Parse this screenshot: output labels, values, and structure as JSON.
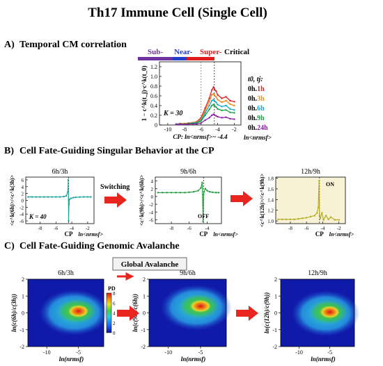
{
  "title": "Th17 Immune Cell (Single Cell)",
  "panels": {
    "A": {
      "label": "A)",
      "title": "Temporal CM correlation"
    },
    "B": {
      "label": "B)",
      "title": "Cell Fate-Guiding Singular Behavior at the CP"
    },
    "C": {
      "label": "C)",
      "title": "Cell Fate-Guiding Genomic Avalanche"
    }
  },
  "criticality": {
    "sub": "Sub-",
    "near": "Near-",
    "super": "Super-",
    "critical": "Critical"
  },
  "colors": {
    "sub": "#7030a0",
    "near": "#1f3fc8",
    "super": "#e01b1b",
    "arrow": "#e8261f",
    "b1": "#1aa39a",
    "b2": "#1f9a3a",
    "b3": "#b6a81a",
    "bg3": "#f7f2d6"
  },
  "arrow_label_switching": "Switching",
  "global_avalanche": "Global Avalanche",
  "chart_data": [
    {
      "type": "line",
      "ylabel": "1 − c^k(t_j)·c^k(t_0)",
      "xlabel": "CP: ln<nrmsf>~ -4.4",
      "xlabel_right": "ln<nrmsf>",
      "annotation": "K = 30",
      "legend_title": "t0, tj:",
      "xlim": [
        -11,
        -1.2
      ],
      "ylim": [
        0,
        1.3
      ],
      "xticks": [
        "-10",
        "-8",
        "-6",
        "-4",
        "-2"
      ],
      "yticks": [
        "0",
        "0.2",
        "0.4",
        "0.6",
        "0.8",
        "1.0",
        "1.2"
      ],
      "vlines": [
        -6,
        -4.4
      ],
      "x": [
        -9,
        -8.5,
        -8,
        -7.5,
        -7,
        -6.5,
        -6,
        -5.5,
        -5,
        -4.7,
        -4.5,
        -4.4,
        -4.2,
        -4,
        -3.5,
        -3,
        -2.5,
        -2
      ],
      "series": [
        {
          "name": "0h.1h",
          "t0": "0h.",
          "tj": "1h",
          "color": "#e02020",
          "values": [
            0.02,
            0.03,
            0.03,
            0.04,
            0.05,
            0.07,
            0.15,
            0.35,
            0.55,
            0.72,
            0.78,
            0.74,
            0.7,
            0.62,
            0.55,
            0.58,
            0.5,
            0.48
          ]
        },
        {
          "name": "0h.3h",
          "t0": "0h.",
          "tj": "3h",
          "color": "#f08a1c",
          "values": [
            0.02,
            0.02,
            0.03,
            0.04,
            0.05,
            0.06,
            0.12,
            0.3,
            0.48,
            0.62,
            0.64,
            0.62,
            0.58,
            0.52,
            0.47,
            0.5,
            0.43,
            0.4
          ]
        },
        {
          "name": "0h.6h",
          "t0": "0h.",
          "tj": "6h",
          "color": "#18a9c8",
          "values": [
            0.02,
            0.02,
            0.02,
            0.03,
            0.04,
            0.05,
            0.1,
            0.25,
            0.4,
            0.5,
            0.52,
            0.5,
            0.47,
            0.42,
            0.38,
            0.4,
            0.33,
            0.31
          ]
        },
        {
          "name": "0h.9h",
          "t0": "0h.",
          "tj": "9h",
          "color": "#18a040",
          "values": [
            0.01,
            0.02,
            0.02,
            0.03,
            0.03,
            0.04,
            0.08,
            0.2,
            0.32,
            0.4,
            0.42,
            0.4,
            0.37,
            0.33,
            0.3,
            0.31,
            0.26,
            0.25
          ]
        },
        {
          "name": "0h.24h",
          "t0": "0h.",
          "tj": "24h",
          "color": "#8a1aa0",
          "values": [
            0.01,
            0.01,
            0.01,
            0.02,
            0.02,
            0.02,
            0.04,
            0.1,
            0.15,
            0.2,
            0.22,
            0.21,
            0.19,
            0.17,
            0.15,
            0.16,
            0.13,
            0.12
          ]
        }
      ]
    },
    {
      "type": "line",
      "title": "6h/3h",
      "ylabel": "<c^k(6h)>/<c^k(3h)>",
      "xlabel": "CP",
      "xlabel_right": "ln<nrmsf>",
      "annotation": "K = 40",
      "xlim": [
        -9.8,
        -1.2
      ],
      "ylim": [
        -6.8,
        6.8
      ],
      "xticks": [
        "-8",
        "-6",
        "-4",
        "-2"
      ],
      "yticks": [
        "-6",
        "-4",
        "-2",
        "0",
        "2",
        "4",
        "6"
      ],
      "vline": -4.4,
      "x": [
        -9.5,
        -9,
        -8.5,
        -8,
        -7.5,
        -7,
        -6.5,
        -6,
        -5.5,
        -5,
        -4.7,
        -4.5,
        -4.45,
        -4.4,
        -4.35,
        -4.3,
        -4.1,
        -3.8,
        -3.5,
        -3,
        -2.5,
        -2,
        -1.6
      ],
      "values": [
        1.0,
        1.0,
        1.0,
        1.0,
        1.0,
        1.0,
        1.0,
        1.0,
        1.0,
        1.1,
        1.3,
        2.5,
        6.0,
        -6.0,
        -1.2,
        0.3,
        0.6,
        0.8,
        0.9,
        0.95,
        1.0,
        1.0,
        1.0
      ]
    },
    {
      "type": "line",
      "title": "9h/6h",
      "ylabel": "<c^k(9h)>/<c^k(6h)>",
      "xlabel": "CP",
      "xlabel_right": "ln<nrmsf>",
      "annotation": "OFF",
      "xlim": [
        -9.8,
        -2.4
      ],
      "ylim": [
        -7,
        5
      ],
      "xticks": [
        "-8",
        "-6",
        "-4"
      ],
      "yticks": [
        "-6",
        "-4",
        "-2",
        "0",
        "2",
        "4"
      ],
      "vline": -4.4,
      "x": [
        -9.5,
        -9,
        -8.5,
        -8,
        -7.5,
        -7,
        -6.5,
        -6,
        -5.5,
        -5,
        -4.7,
        -4.55,
        -4.45,
        -4.4,
        -4.35,
        -4.2,
        -4,
        -3.7,
        -3.4,
        -3,
        -2.7
      ],
      "values": [
        1.0,
        1.0,
        1.0,
        1.0,
        1.0,
        1.0,
        1.0,
        1.1,
        1.2,
        1.5,
        2.2,
        3.6,
        -6.5,
        0.5,
        1.2,
        2.0,
        1.5,
        1.2,
        1.1,
        1.0,
        1.0
      ]
    },
    {
      "type": "line",
      "title": "12h/9h",
      "ylabel": "<c^k(12h)>/<c^k(9h)>",
      "xlabel": "CP",
      "xlabel_right": "ln<nrmsf>",
      "annotation": "ON",
      "xlim": [
        -9.8,
        -1.2
      ],
      "ylim": [
        0.95,
        1.82
      ],
      "xticks": [
        "-8",
        "-6",
        "-4",
        "-2"
      ],
      "yticks": [
        "1.0",
        "1.2",
        "1.4",
        "1.6",
        "1.8"
      ],
      "vline": -4.4,
      "x": [
        -9.5,
        -9,
        -8.5,
        -8,
        -7.5,
        -7,
        -6.5,
        -6,
        -5.5,
        -5,
        -4.7,
        -4.55,
        -4.45,
        -4.4,
        -4.3,
        -4.1,
        -3.9,
        -3.6,
        -3.3,
        -3,
        -2.5,
        -2
      ],
      "values": [
        1.03,
        1.03,
        1.03,
        1.03,
        1.03,
        1.04,
        1.05,
        1.06,
        1.08,
        1.1,
        1.15,
        1.25,
        1.75,
        1.1,
        1.05,
        1.15,
        1.02,
        1.1,
        1.03,
        1.07,
        1.02,
        1.02
      ]
    },
    {
      "type": "heatmap",
      "title": "6h/3h",
      "ylabel": "ln(c(6h)/c(3h))",
      "xlabel": "ln(nrmsf)",
      "colorbar_label": "PD",
      "colorbar_ticks": [
        "0",
        "2",
        "4",
        "6",
        "8"
      ],
      "xticks": [
        "-10",
        "-5"
      ],
      "yticks": [
        "-2",
        "-1",
        "0",
        "1",
        "2"
      ],
      "peak": {
        "x": -5,
        "y": 0.1,
        "value": 8
      }
    },
    {
      "type": "heatmap",
      "title": "9h/6h",
      "ylabel": "ln(c(9h)/c(6h))",
      "xlabel": "ln(nrmsf)",
      "xticks": [
        "-10",
        "-5"
      ],
      "yticks": [
        "-2",
        "-1",
        "0",
        "1",
        "2"
      ],
      "peak": {
        "x": -5,
        "y": 0.4,
        "value": 8
      }
    },
    {
      "type": "heatmap",
      "title": "12h/9h",
      "ylabel": "ln(c(12h)/c(9h))",
      "xlabel": "ln(nrmsf)",
      "xticks": [
        "-10",
        "-5"
      ],
      "yticks": [
        "-2",
        "-1",
        "0",
        "1",
        "2"
      ],
      "peak": {
        "x": -5,
        "y": 0.05,
        "value": 8
      }
    }
  ]
}
